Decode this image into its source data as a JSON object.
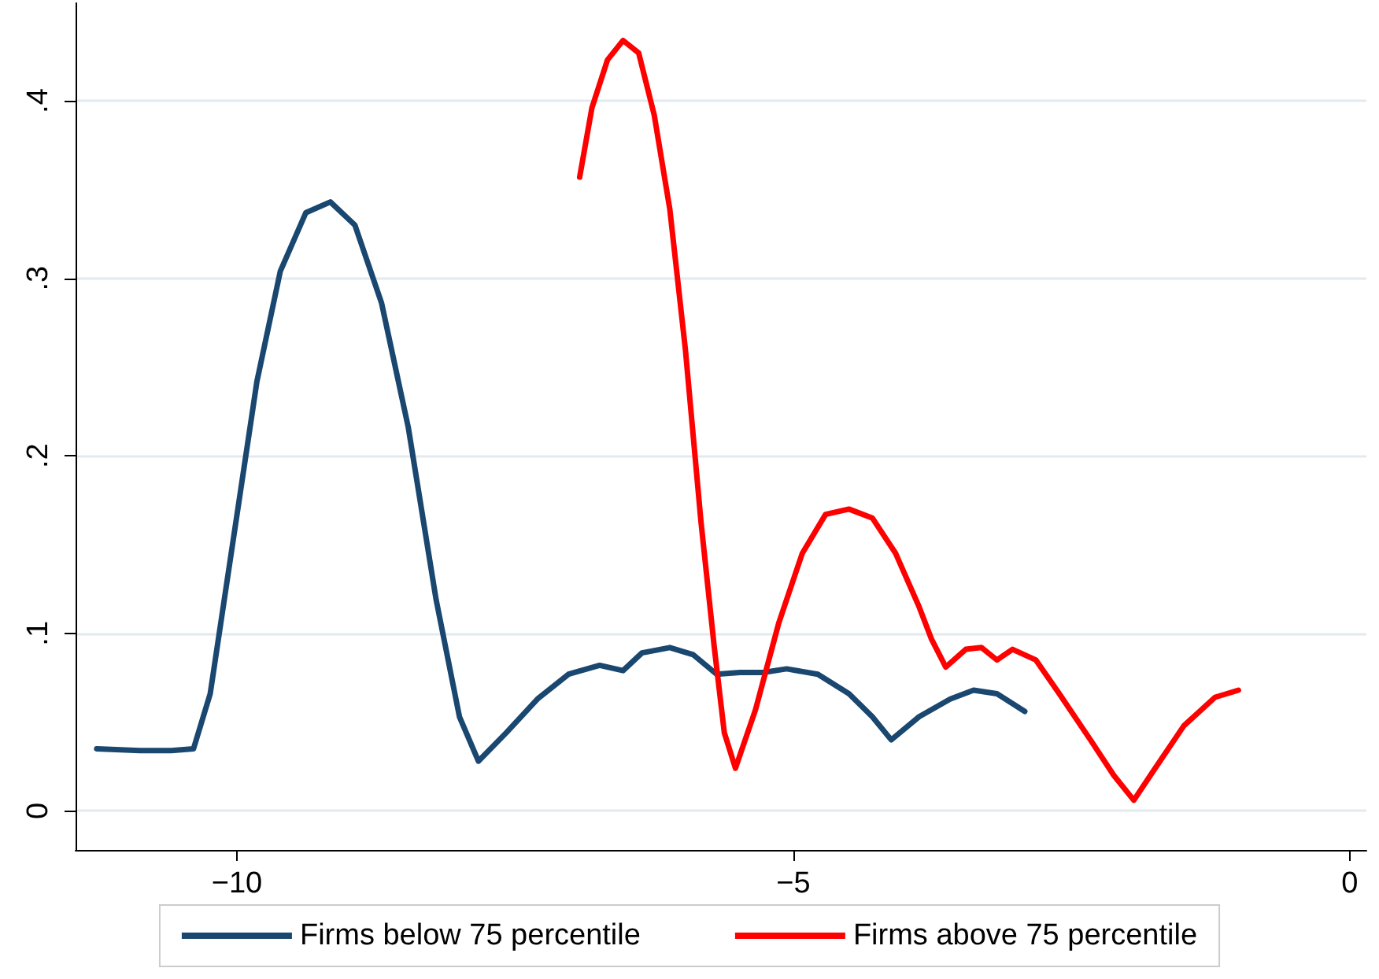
{
  "chart_data": {
    "type": "line",
    "xlim": [
      -11.45,
      0.15
    ],
    "ylim": [
      -0.022,
      0.455
    ],
    "xticks": [
      {
        "value": -10,
        "label": "−10"
      },
      {
        "value": -5,
        "label": "−5"
      },
      0
    ],
    "yticks": [
      0,
      {
        "value": 0.1,
        "label": ".1"
      },
      {
        "value": 0.2,
        "label": ".2"
      },
      {
        "value": 0.3,
        "label": ".3"
      },
      {
        "value": 0.4,
        "label": ".4"
      }
    ],
    "grid": "y",
    "legend": "bottom",
    "marker": "none",
    "line_style": "solid",
    "series": [
      {
        "name": "Firms below 75 percentile",
        "color": "#1a476f",
        "x": [
          -11.26,
          -10.87,
          -10.59,
          -10.39,
          -10.24,
          -10.03,
          -9.82,
          -9.61,
          -9.38,
          -9.16,
          -8.94,
          -8.7,
          -8.46,
          -8.21,
          -8.0,
          -7.83,
          -7.58,
          -7.3,
          -7.02,
          -6.74,
          -6.53,
          -6.36,
          -6.11,
          -5.9,
          -5.69,
          -5.48,
          -5.27,
          -5.06,
          -4.78,
          -4.5,
          -4.29,
          -4.12,
          -3.87,
          -3.59,
          -3.38,
          -3.17,
          -2.92
        ],
        "values": [
          0.035,
          0.034,
          0.034,
          0.035,
          0.066,
          0.154,
          0.242,
          0.304,
          0.337,
          0.343,
          0.33,
          0.286,
          0.216,
          0.119,
          0.053,
          0.028,
          0.044,
          0.063,
          0.077,
          0.082,
          0.079,
          0.089,
          0.092,
          0.088,
          0.077,
          0.078,
          0.078,
          0.08,
          0.077,
          0.066,
          0.053,
          0.04,
          0.053,
          0.063,
          0.068,
          0.066,
          0.056
        ]
      },
      {
        "name": "Firms above 75 percentile",
        "color": "#ff0000",
        "x": [
          -6.92,
          -6.81,
          -6.67,
          -6.53,
          -6.39,
          -6.25,
          -6.11,
          -5.97,
          -5.83,
          -5.71,
          -5.62,
          -5.52,
          -5.34,
          -5.13,
          -4.92,
          -4.71,
          -4.5,
          -4.29,
          -4.08,
          -3.87,
          -3.76,
          -3.63,
          -3.45,
          -3.31,
          -3.17,
          -3.03,
          -2.82,
          -2.61,
          -2.33,
          -2.12,
          -1.94,
          -1.77,
          -1.49,
          -1.21,
          -1.0
        ],
        "values": [
          0.357,
          0.396,
          0.423,
          0.434,
          0.427,
          0.392,
          0.339,
          0.26,
          0.163,
          0.092,
          0.044,
          0.024,
          0.057,
          0.106,
          0.145,
          0.167,
          0.17,
          0.165,
          0.145,
          0.115,
          0.097,
          0.081,
          0.091,
          0.092,
          0.085,
          0.091,
          0.085,
          0.066,
          0.04,
          0.02,
          0.006,
          0.022,
          0.048,
          0.064,
          0.068
        ]
      }
    ]
  }
}
